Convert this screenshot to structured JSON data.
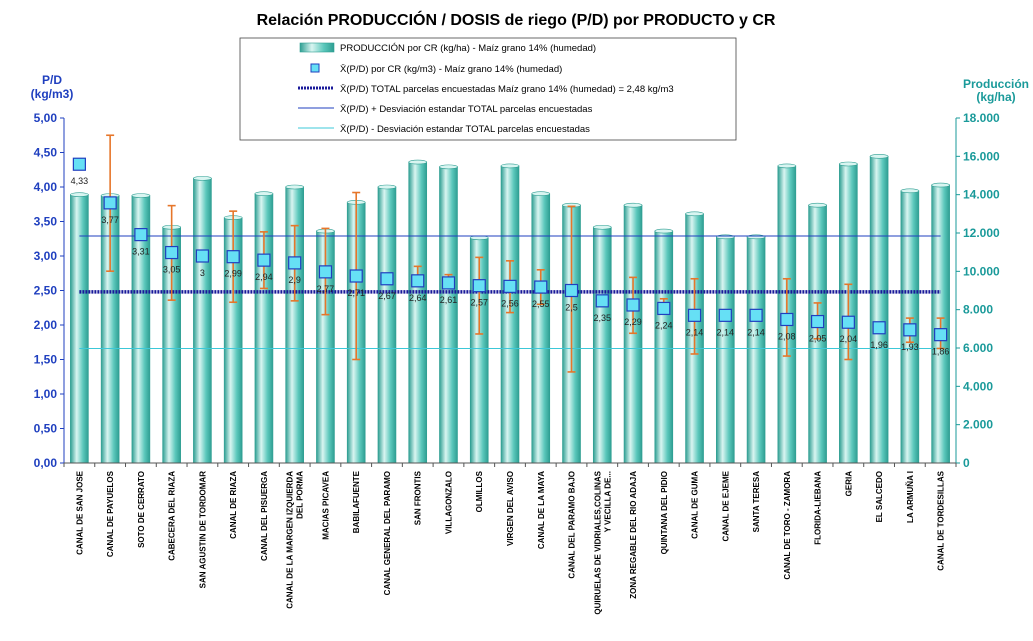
{
  "chart_data": {
    "type": "bar",
    "title": "Relación PRODUCCIÓN / DOSIS de riego (P/D) por PRODUCTO y CR",
    "ylabel_left": [
      "P/D",
      "(kg/m3)"
    ],
    "ylabel_right": [
      "Producción",
      "(kg/ha)"
    ],
    "ylim_left": [
      0,
      5
    ],
    "ylim_right": [
      0,
      18000
    ],
    "yticks_left": [
      "0,00",
      "0,50",
      "1,00",
      "1,50",
      "2,00",
      "2,50",
      "3,00",
      "3,50",
      "4,00",
      "4,50",
      "5,00"
    ],
    "yticks_right": [
      "0",
      "2.000",
      "4.000",
      "6.000",
      "8.000",
      "10.000",
      "12.000",
      "14.000",
      "16.000",
      "18.000"
    ],
    "categories": [
      [
        "CANAL DE SAN JOSE"
      ],
      [
        "CANAL DE PAYUELOS"
      ],
      [
        "SOTO DE CERRATO"
      ],
      [
        "CABECERA DEL RIAZA"
      ],
      [
        "SAN AGUSTIN DE TORDOMAR"
      ],
      [
        "CANAL DE RIAZA"
      ],
      [
        "CANAL DEL PISUERGA"
      ],
      [
        "CANAL DE LA MARGEN IZQUIERDA",
        "DEL PORMA"
      ],
      [
        "MACIAS PICAVEA"
      ],
      [
        "BABILAFUENTE"
      ],
      [
        "CANAL GENERAL DEL PARAMO"
      ],
      [
        "SAN FRONTIS"
      ],
      [
        "VILLAGONZALO"
      ],
      [
        "OLMILLOS"
      ],
      [
        "VIRGEN DEL AVISO"
      ],
      [
        "CANAL DE LA MAYA"
      ],
      [
        "CANAL DEL PARAMO BAJO"
      ],
      [
        "QUIRUELAS DE VIDRIALES,COLINAS",
        "Y VECILLA DE..."
      ],
      [
        "ZONA REGABLE DEL RIO ADAJA"
      ],
      [
        "QUINTANA DEL PIDIO"
      ],
      [
        "CANAL DE GUMA"
      ],
      [
        "CANAL DE EJEME"
      ],
      [
        "SANTA TERESA"
      ],
      [
        "CANAL DE TORO - ZAMORA"
      ],
      [
        "FLORIDA-LIEBANA"
      ],
      [
        "GERIA"
      ],
      [
        "EL SALCEDO"
      ],
      [
        "LA ARMUÑA I"
      ],
      [
        "CANAL DE TORDESILLAS"
      ]
    ],
    "production_kg_ha": [
      14000,
      13950,
      13950,
      12300,
      14850,
      12800,
      14050,
      14400,
      12100,
      13600,
      14400,
      15700,
      15450,
      11750,
      15500,
      14050,
      13450,
      12300,
      13450,
      12100,
      13000,
      11800,
      11800,
      15500,
      13450,
      15600,
      16000,
      14200,
      14500
    ],
    "pd_kg_m3": [
      4.33,
      3.77,
      3.31,
      3.05,
      3.0,
      2.99,
      2.94,
      2.9,
      2.77,
      2.71,
      2.67,
      2.64,
      2.61,
      2.57,
      2.56,
      2.55,
      2.5,
      2.35,
      2.29,
      2.24,
      2.14,
      2.14,
      2.14,
      2.08,
      2.05,
      2.04,
      1.96,
      1.93,
      1.86
    ],
    "pd_labels": [
      "4,33",
      "3,77",
      "3,31",
      "3,05",
      "3",
      "2,99",
      "2,94",
      "2,9",
      "2,77",
      "2,71",
      "2,67",
      "2,64",
      "2,61",
      "2,57",
      "2,56",
      "2,55",
      "2,5",
      "2,35",
      "2,29",
      "2,24",
      "2,14",
      "2,14",
      "2,14",
      "2,08",
      "2,05",
      "2,04",
      "1,96",
      "1,93",
      "1,86"
    ],
    "pd_err_low": [
      null,
      2.78,
      null,
      2.36,
      null,
      2.33,
      2.53,
      2.35,
      2.15,
      1.5,
      null,
      2.57,
      2.53,
      1.87,
      2.18,
      2.3,
      1.32,
      null,
      1.88,
      2.18,
      1.58,
      null,
      null,
      1.55,
      1.8,
      1.5,
      null,
      1.75,
      1.66
    ],
    "pd_err_high": [
      null,
      4.75,
      null,
      3.73,
      null,
      3.65,
      3.35,
      3.44,
      3.4,
      3.92,
      null,
      2.85,
      2.73,
      2.98,
      2.93,
      2.8,
      3.72,
      null,
      2.69,
      2.38,
      2.67,
      null,
      null,
      2.67,
      2.32,
      2.59,
      null,
      2.1,
      2.1
    ],
    "pd_total": 2.48,
    "pd_total_plus_sd": 3.29,
    "pd_total_minus_sd": 1.66,
    "legend": [
      "PRODUCCIÓN por CR (kg/ha) - Maíz grano 14% (humedad)",
      "X̄(P/D) por CR (kg/m3) - Maíz grano 14% (humedad)",
      "X̄(P/D) TOTAL parcelas encuestadas Maíz grano 14% (humedad) = 2,48 kg/m3",
      "X̄(P/D) + Desviación estandar TOTAL parcelas encuestadas",
      "X̄(P/D) - Desviación estandar TOTAL parcelas encuestadas"
    ],
    "legend_placement": "top-center",
    "colors": {
      "bar_fill": "#5cc8bc",
      "bar_light": "#d9f5f1",
      "bar_dark": "#2e9e92",
      "marker_fill": "#66e0f5",
      "marker_stroke": "#1f3fbf",
      "error_bar": "#e6762a",
      "total_line": "#1a1a9a",
      "plus_sd_line": "#1f3fbf",
      "minus_sd_line": "#3cc8d8",
      "left_axis": "#1f3fbf",
      "right_axis": "#1a9a9a"
    }
  }
}
